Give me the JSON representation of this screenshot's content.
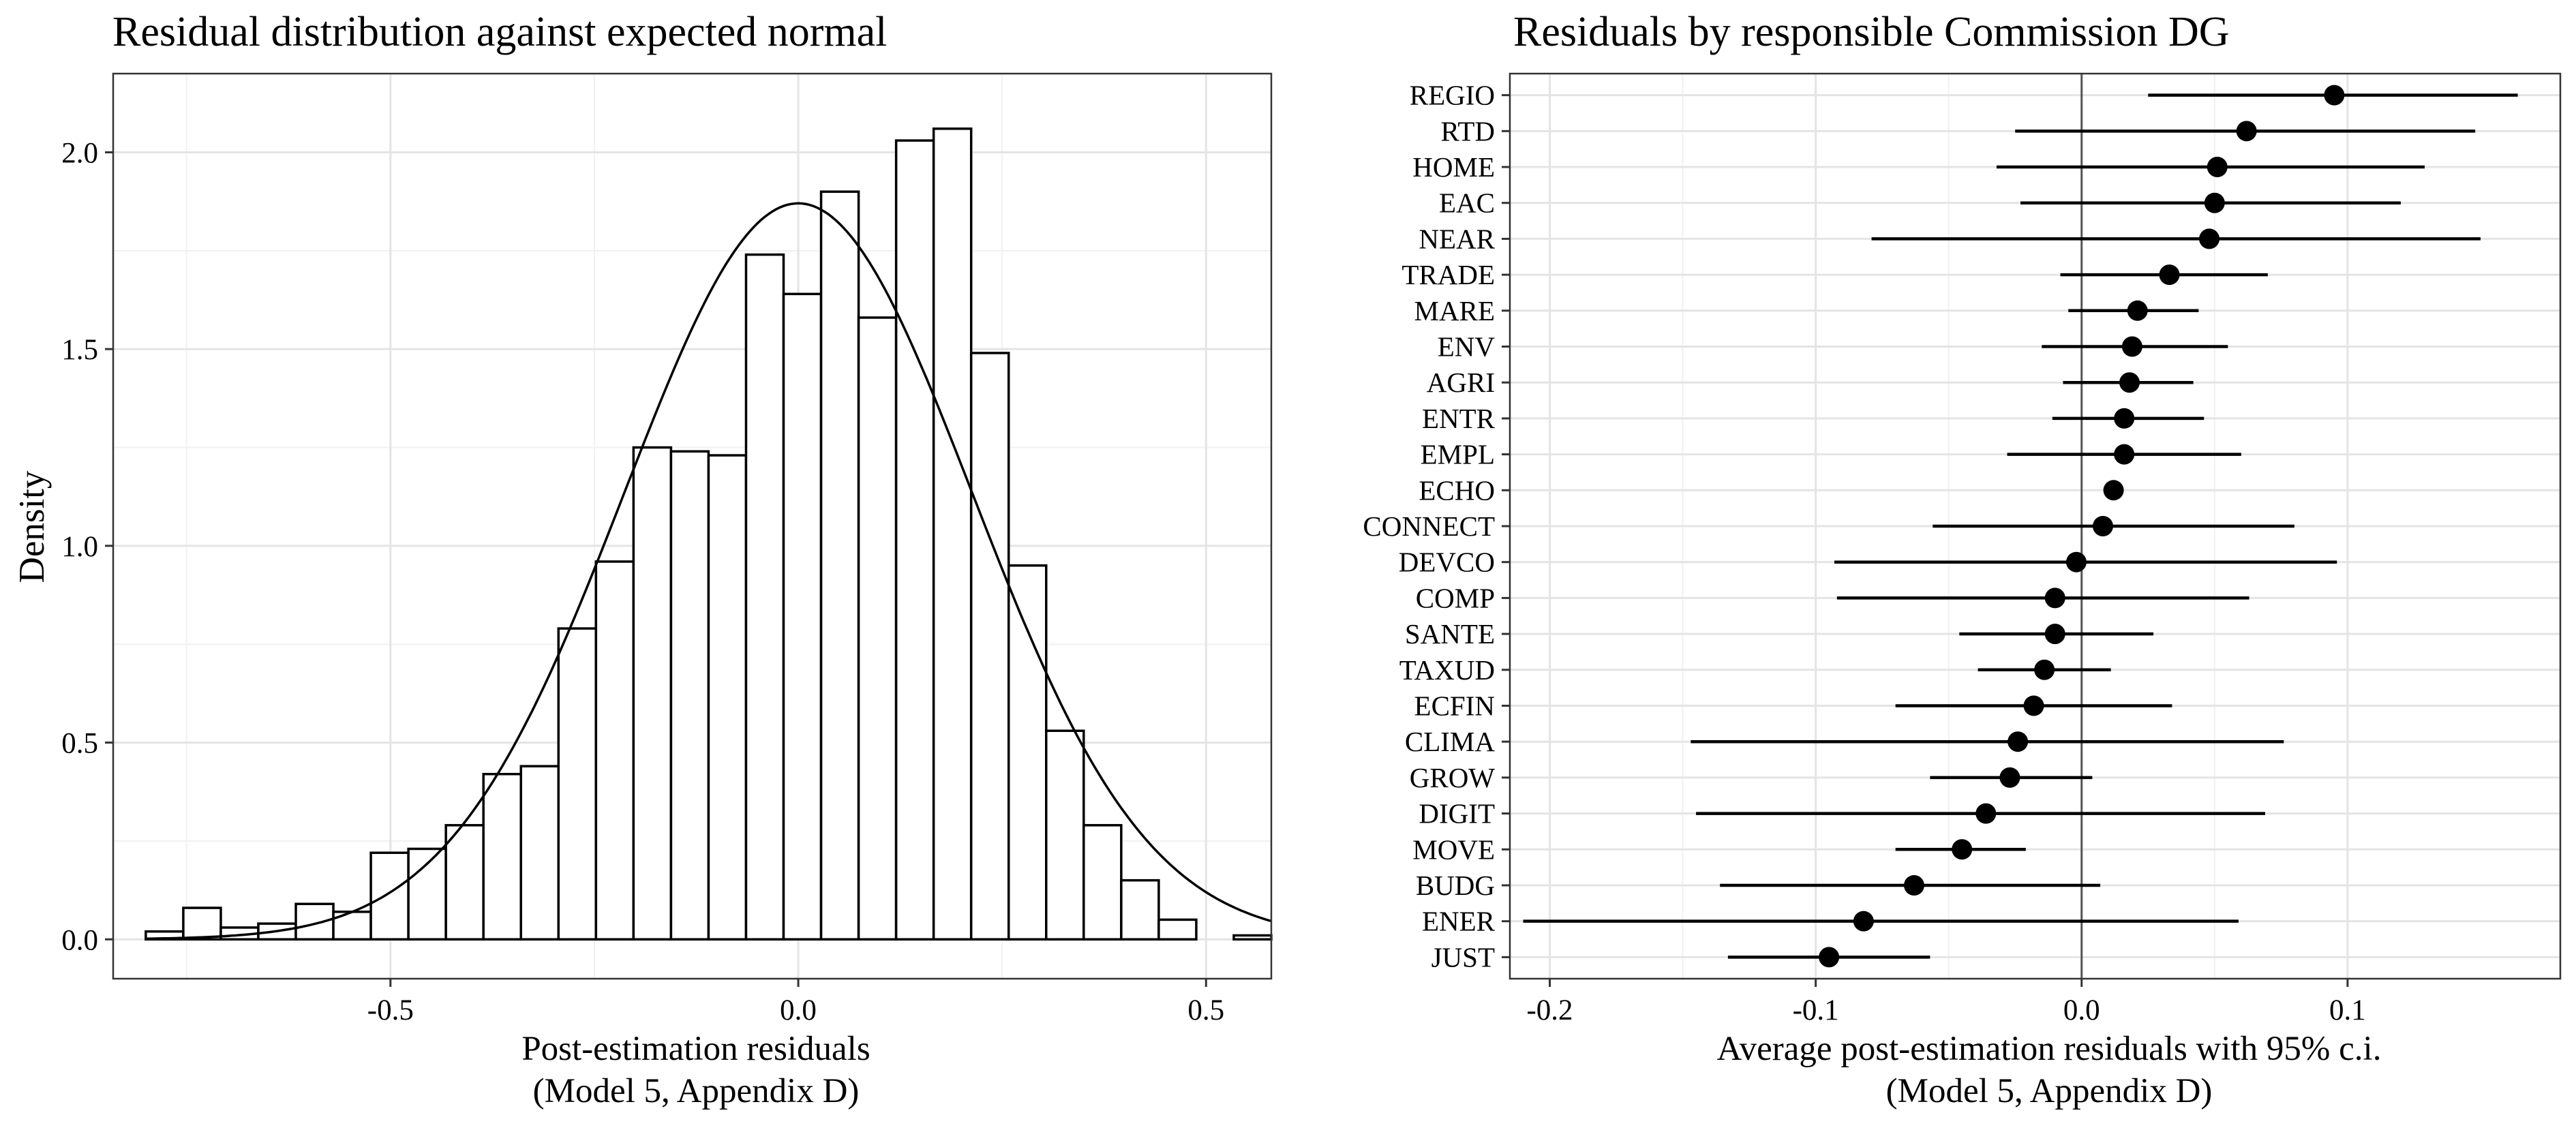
{
  "chart_data": [
    {
      "type": "histogram",
      "title": "Residual distribution against expected normal",
      "xlabel": [
        "Post-estimation residuals",
        "(Model 5, Appendix D)"
      ],
      "ylabel": "Density",
      "xlim": [
        -0.84,
        0.58
      ],
      "ylim": [
        -0.1,
        2.2
      ],
      "x_ticks": [
        -0.5,
        0.0,
        0.5
      ],
      "x_tick_labels": [
        "-0.5",
        "0.0",
        "0.5"
      ],
      "y_ticks": [
        0.0,
        0.5,
        1.0,
        1.5,
        2.0
      ],
      "y_tick_labels": [
        "0.0",
        "0.5",
        "1.0",
        "1.5",
        "2.0"
      ],
      "grid": true,
      "bin_edges": [
        -0.8,
        -0.754,
        -0.708,
        -0.662,
        -0.616,
        -0.57,
        -0.524,
        -0.478,
        -0.432,
        -0.386,
        -0.34,
        -0.294,
        -0.248,
        -0.202,
        -0.156,
        -0.11,
        -0.064,
        -0.018,
        0.028,
        0.074,
        0.12,
        0.166,
        0.212,
        0.258,
        0.304,
        0.35,
        0.396,
        0.442,
        0.488,
        0.534,
        0.58
      ],
      "bin_density": [
        0.02,
        0.08,
        0.03,
        0.04,
        0.09,
        0.07,
        0.22,
        0.23,
        0.29,
        0.42,
        0.44,
        0.79,
        0.96,
        1.25,
        1.24,
        1.23,
        1.74,
        1.64,
        1.9,
        1.58,
        2.03,
        2.06,
        1.49,
        0.95,
        0.53,
        0.29,
        0.15,
        0.05,
        0.0,
        0.01
      ],
      "normal_curve": {
        "mean": 0.0,
        "sd": 0.2133
      }
    },
    {
      "type": "dot-and-whisker",
      "title": "Residuals by responsible Commission DG",
      "xlabel": [
        "Average post-estimation residuals with 95% c.i.",
        "(Model 5, Appendix D)"
      ],
      "xlim": [
        -0.215,
        0.18
      ],
      "x_ticks": [
        -0.2,
        -0.1,
        0.0,
        0.1
      ],
      "x_tick_labels": [
        "-0.2",
        "-0.1",
        "0.0",
        "0.1"
      ],
      "reference_line": 0.0,
      "grid": true,
      "categories": [
        "REGIO",
        "RTD",
        "HOME",
        "EAC",
        "NEAR",
        "TRADE",
        "MARE",
        "ENV",
        "AGRI",
        "ENTR",
        "EMPL",
        "ECHO",
        "CONNECT",
        "DEVCO",
        "COMP",
        "SANTE",
        "TAXUD",
        "ECFIN",
        "CLIMA",
        "GROW",
        "DIGIT",
        "MOVE",
        "BUDG",
        "ENER",
        "JUST"
      ],
      "estimate": [
        0.095,
        0.062,
        0.051,
        0.05,
        0.048,
        0.033,
        0.021,
        0.019,
        0.018,
        0.016,
        0.016,
        0.012,
        0.008,
        -0.002,
        -0.01,
        -0.01,
        -0.014,
        -0.018,
        -0.024,
        -0.027,
        -0.036,
        -0.045,
        -0.063,
        -0.082,
        -0.095
      ],
      "ci_low": [
        0.025,
        -0.025,
        -0.032,
        -0.023,
        -0.079,
        -0.008,
        -0.005,
        -0.015,
        -0.007,
        -0.011,
        -0.028,
        0.012,
        -0.056,
        -0.093,
        -0.092,
        -0.046,
        -0.039,
        -0.07,
        -0.147,
        -0.057,
        -0.145,
        -0.07,
        -0.136,
        -0.21,
        -0.133
      ],
      "ci_high": [
        0.164,
        0.148,
        0.129,
        0.12,
        0.15,
        0.07,
        0.044,
        0.055,
        0.042,
        0.046,
        0.06,
        0.012,
        0.08,
        0.096,
        0.063,
        0.027,
        0.011,
        0.034,
        0.076,
        0.004,
        0.069,
        -0.021,
        0.007,
        0.059,
        -0.057
      ]
    }
  ]
}
